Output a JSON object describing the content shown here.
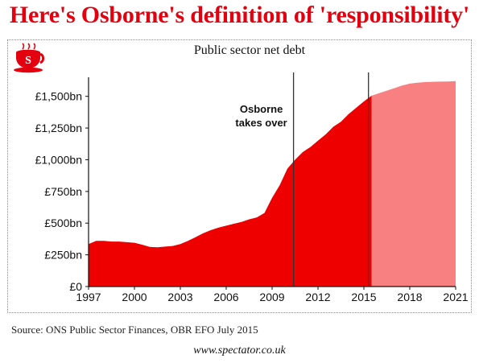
{
  "headline": "Here's Osborne's definition of 'responsibility'",
  "logo": {
    "icon": "teacup-s-icon",
    "letter": "S",
    "color": "#e3000f"
  },
  "source": "Source: ONS Public Sector Finances, OBR EFO July 2015",
  "website": "www.spectator.co.uk",
  "chart_data": {
    "type": "area",
    "title": "Public sector net debt",
    "xlabel": "",
    "ylabel": "",
    "xlim": [
      1997,
      2021
    ],
    "ylim": [
      0,
      1625
    ],
    "grid": false,
    "x_ticks": [
      1997,
      2000,
      2003,
      2006,
      2009,
      2012,
      2015,
      2018,
      2021
    ],
    "x_tick_labels": [
      "1997",
      "2000",
      "2003",
      "2006",
      "2009",
      "2012",
      "2015",
      "2018",
      "2021"
    ],
    "y_ticks": [
      0,
      250,
      500,
      750,
      1000,
      1250,
      1500
    ],
    "y_tick_labels": [
      "£0",
      "£250bn",
      "£500bn",
      "£750bn",
      "£1,000bn",
      "£1,250bn",
      "£1,500bn"
    ],
    "series": [
      {
        "name": "",
        "kind": "outturn",
        "color": "#ee0000",
        "x": [
          1997,
          1997.5,
          1998,
          1998.5,
          1999,
          1999.5,
          2000,
          2000.5,
          2001,
          2001.5,
          2002,
          2002.5,
          2003,
          2003.5,
          2004,
          2004.5,
          2005,
          2005.5,
          2006,
          2006.5,
          2007,
          2007.5,
          2008,
          2008.5,
          2009,
          2009.5,
          2010,
          2010.5,
          2011,
          2011.5,
          2012,
          2012.5,
          2013,
          2013.5,
          2014,
          2014.5,
          2015,
          2015.5
        ],
        "y": [
          335,
          360,
          360,
          355,
          355,
          350,
          345,
          330,
          312,
          310,
          315,
          320,
          335,
          360,
          390,
          420,
          445,
          465,
          480,
          495,
          510,
          530,
          545,
          580,
          700,
          800,
          930,
          1000,
          1060,
          1100,
          1150,
          1200,
          1260,
          1300,
          1360,
          1410,
          1460,
          1505
        ]
      },
      {
        "name": "",
        "kind": "forecast",
        "color": "#f98080",
        "x": [
          2015.5,
          2016,
          2016.5,
          2017,
          2017.5,
          2018,
          2018.5,
          2019,
          2019.5,
          2020,
          2020.5,
          2021
        ],
        "y": [
          1505,
          1525,
          1545,
          1565,
          1585,
          1600,
          1608,
          1612,
          1615,
          1616,
          1617,
          1620
        ]
      }
    ],
    "markers": [
      {
        "x": 2010.4,
        "label_lines": [
          "Osborne",
          "takes over"
        ]
      },
      {
        "x": 2015.3
      }
    ]
  }
}
